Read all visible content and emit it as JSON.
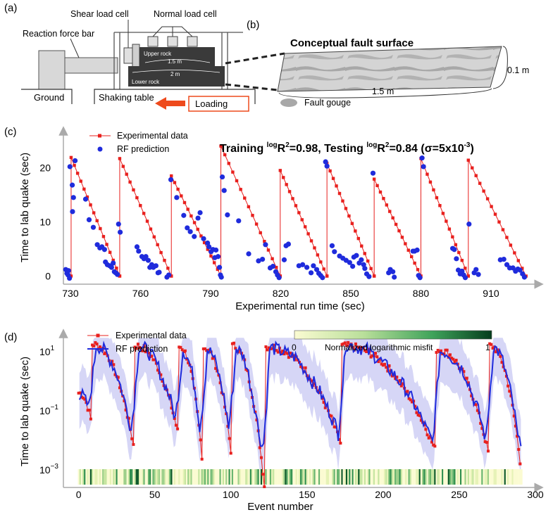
{
  "panel_a": {
    "label": "(a)",
    "labels": {
      "shear_load_cell": "Shear load cell",
      "normal_load_cell": "Normal load cell",
      "reaction_force_bar": "Reaction force bar",
      "upper_rock": "Upper rock",
      "lower_rock": "Lower rock",
      "dim_upper": "1.5 m",
      "dim_lower": "2 m",
      "ground": "Ground",
      "shaking_table": "Shaking table",
      "loading": "Loading"
    }
  },
  "panel_b": {
    "label": "(b)",
    "title": "Conceptual fault surface",
    "dim_thickness": "0.1 m",
    "dim_length": "1.5 m",
    "legend_gouge": "Fault gouge"
  },
  "colors": {
    "experimental": "#e8201e",
    "rf_prediction": "#1f2bdc",
    "band": "#b4b4ef",
    "loading_arrow": "#ee4a1c"
  },
  "chart_data": [
    {
      "panel": "(c)",
      "type": "scatter",
      "title": "Training logR²=0.98, Testing logR²=0.84 (σ=5x10⁻³)",
      "title_parts": {
        "a": "Training ",
        "sup1": "log",
        "b": "R",
        "sup2": "2",
        "c": "=0.98, Testing ",
        "sup3": "log",
        "d": "R",
        "sup4": "2",
        "e": "=0.84 (σ=5x10",
        "sup5": "-3",
        "f": ")"
      },
      "xlabel": "Experimental run time (sec)",
      "ylabel": "Time to lab quake (sec)",
      "xlim": [
        727,
        929
      ],
      "ylim": [
        -1.5,
        25
      ],
      "xticks": [
        730,
        760,
        790,
        820,
        850,
        880,
        910
      ],
      "yticks": [
        0,
        10,
        20
      ],
      "legend": [
        "Experimental data",
        "RF prediction"
      ],
      "quake_times": [
        730.3,
        751.1,
        773.2,
        794.4,
        819.8,
        839.8,
        860.0,
        880.0,
        900.3,
        925.0
      ],
      "peak_values": [
        21.9,
        21.7,
        18.5,
        24.0,
        19.5,
        20.8,
        17.9,
        21.7,
        21.4
      ],
      "rf_prediction": [
        [
          728.0,
          1.2
        ],
        [
          728.5,
          0.5
        ],
        [
          729.0,
          0.2
        ],
        [
          729.6,
          -0.4
        ],
        [
          729.2,
          1.0
        ],
        [
          729.8,
          20.2
        ],
        [
          730.8,
          16.8
        ],
        [
          731.3,
          14.5
        ],
        [
          730.9,
          11.9
        ],
        [
          732.0,
          21.3
        ],
        [
          736.5,
          14.2
        ],
        [
          738.0,
          10.4
        ],
        [
          739.8,
          9.0
        ],
        [
          741.5,
          5.8
        ],
        [
          742.6,
          5.2
        ],
        [
          743.5,
          5.4
        ],
        [
          744.6,
          4.9
        ],
        [
          745.0,
          2.6
        ],
        [
          745.8,
          2.1
        ],
        [
          746.8,
          1.9
        ],
        [
          747.6,
          1.6
        ],
        [
          748.3,
          2.4
        ],
        [
          748.8,
          0.8
        ],
        [
          749.4,
          0.6
        ],
        [
          750.1,
          0.3
        ],
        [
          750.6,
          9.6
        ],
        [
          751.3,
          8.1
        ],
        [
          758.5,
          5.4
        ],
        [
          759.2,
          4.6
        ],
        [
          760.6,
          3.6
        ],
        [
          761.5,
          3.2
        ],
        [
          762.3,
          3.6
        ],
        [
          763.3,
          2.9
        ],
        [
          764.0,
          1.6
        ],
        [
          764.8,
          2.1
        ],
        [
          765.5,
          1.6
        ],
        [
          766.6,
          1.9
        ],
        [
          767.5,
          0.6
        ],
        [
          768.0,
          0.7
        ],
        [
          771.3,
          -0.2
        ],
        [
          772.1,
          0.2
        ],
        [
          773.0,
          17.8
        ],
        [
          775.5,
          14.5
        ],
        [
          778.5,
          11.2
        ],
        [
          780.0,
          8.9
        ],
        [
          781.3,
          8.2
        ],
        [
          783.0,
          7.3
        ],
        [
          784.6,
          10.7
        ],
        [
          785.5,
          11.7
        ],
        [
          787.0,
          6.9
        ],
        [
          788.7,
          6.1
        ],
        [
          789.3,
          5.4
        ],
        [
          790.2,
          4.5
        ],
        [
          791.0,
          4.9
        ],
        [
          791.8,
          3.4
        ],
        [
          792.3,
          4.8
        ],
        [
          793.2,
          3.6
        ],
        [
          793.8,
          1.6
        ],
        [
          794.2,
          0.2
        ],
        [
          794.6,
          -0.2
        ],
        [
          795.0,
          18.3
        ],
        [
          795.8,
          15.8
        ],
        [
          797.2,
          11.3
        ],
        [
          802.0,
          10.2
        ],
        [
          806.3,
          4.1
        ],
        [
          810.5,
          2.8
        ],
        [
          812.2,
          3.1
        ],
        [
          813.5,
          5.8
        ],
        [
          815.5,
          1.5
        ],
        [
          816.7,
          1.8
        ],
        [
          817.9,
          0.8
        ],
        [
          818.6,
          0.2
        ],
        [
          819.3,
          -0.3
        ],
        [
          821.5,
          3.0
        ],
        [
          822.3,
          5.6
        ],
        [
          823.3,
          5.9
        ],
        [
          827.8,
          1.9
        ],
        [
          829.4,
          2.1
        ],
        [
          831.2,
          1.6
        ],
        [
          833.0,
          0.6
        ],
        [
          834.0,
          1.9
        ],
        [
          835.4,
          1.2
        ],
        [
          836.3,
          0.5
        ],
        [
          837.1,
          0.1
        ],
        [
          837.9,
          -0.3
        ],
        [
          839.2,
          21.1
        ],
        [
          839.8,
          20.3
        ],
        [
          842.0,
          5.6
        ],
        [
          843.0,
          4.5
        ],
        [
          845.2,
          3.7
        ],
        [
          846.6,
          3.3
        ],
        [
          848.0,
          2.9
        ],
        [
          849.5,
          2.5
        ],
        [
          850.8,
          1.8
        ],
        [
          851.3,
          3.5
        ],
        [
          852.4,
          3.8
        ],
        [
          853.6,
          2.4
        ],
        [
          854.5,
          3.0
        ],
        [
          855.5,
          2.1
        ],
        [
          856.0,
          1.4
        ],
        [
          856.8,
          0.4
        ],
        [
          857.8,
          -0.1
        ],
        [
          859.5,
          19.0
        ],
        [
          866.2,
          0.6
        ],
        [
          866.9,
          1.2
        ],
        [
          868.0,
          0.8
        ],
        [
          868.6,
          -0.2
        ],
        [
          876.6,
          4.6
        ],
        [
          877.3,
          4.6
        ],
        [
          878.4,
          4.8
        ],
        [
          879.0,
          0.1
        ],
        [
          879.6,
          -0.3
        ],
        [
          880.5,
          21.8
        ],
        [
          881.1,
          20.2
        ],
        [
          893.6,
          5.1
        ],
        [
          894.3,
          4.9
        ],
        [
          895.2,
          3.2
        ],
        [
          896.0,
          1.1
        ],
        [
          896.8,
          0.4
        ],
        [
          897.6,
          0.9
        ],
        [
          898.3,
          0.2
        ],
        [
          899.0,
          -0.3
        ],
        [
          900.6,
          9.6
        ],
        [
          902.8,
          0.6
        ],
        [
          903.6,
          1.2
        ],
        [
          904.6,
          0.3
        ],
        [
          914.0,
          3.0
        ],
        [
          915.5,
          3.1
        ],
        [
          916.8,
          2.1
        ],
        [
          918.0,
          1.5
        ],
        [
          919.4,
          1.5
        ],
        [
          920.5,
          0.9
        ],
        [
          921.5,
          1.3
        ],
        [
          922.4,
          1.1
        ],
        [
          923.5,
          0.4
        ],
        [
          924.3,
          -0.2
        ]
      ]
    },
    {
      "panel": "(d)",
      "type": "line",
      "xlabel": "Event number",
      "ylabel": "Time to lab quake (sec)",
      "xlim": [
        -10,
        300
      ],
      "ylog": true,
      "ylim": [
        0.00025,
        40
      ],
      "xticks": [
        0,
        50,
        100,
        150,
        200,
        250,
        300
      ],
      "yticks": [
        {
          "value": 0.001,
          "base": "10",
          "exp": "−3"
        },
        {
          "value": 0.1,
          "base": "10",
          "exp": "−1"
        },
        {
          "value": 10,
          "base": "10",
          "exp": "1"
        }
      ],
      "legend": [
        "Experimental data",
        "RF prediction"
      ],
      "colorbar": {
        "label": "Normalized logarithmic misfit",
        "min": "0",
        "max": "1"
      },
      "quake_events": [
        0,
        9,
        37,
        66,
        82,
        101,
        123,
        173,
        235,
        270,
        291
      ],
      "cycle_peaks": [
        0.4,
        18,
        16,
        15,
        14,
        16,
        15,
        16,
        12,
        16,
        0
      ],
      "cycle_mins": [
        0.05,
        0.007,
        0.02,
        0.003,
        0.0045,
        0.0003,
        0.008,
        0.005,
        0.004,
        0.002,
        0.0012
      ]
    }
  ]
}
